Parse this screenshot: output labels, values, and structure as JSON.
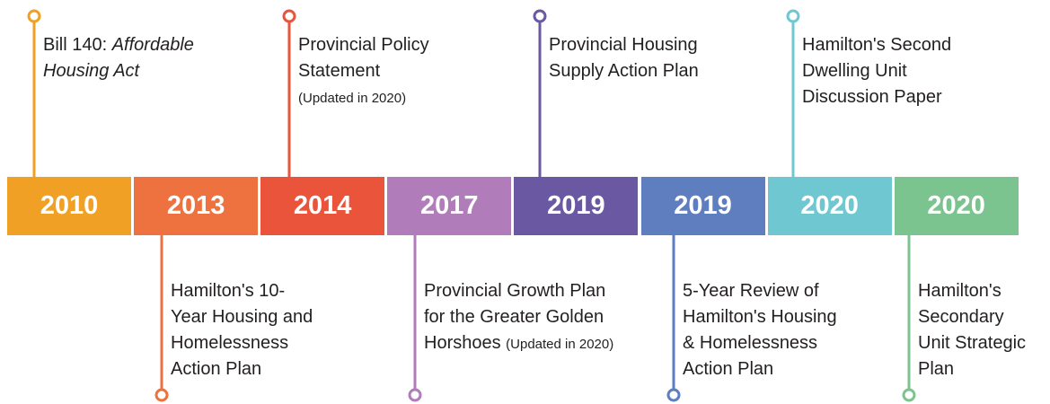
{
  "events": [
    {
      "year": "2010",
      "color": "#f0a125",
      "side": "top",
      "lines": [
        [
          "Bill 140: ",
          {
            "text": "Affordable",
            "style": "italic"
          }
        ],
        [
          {
            "text": "Housing Act",
            "style": "italic"
          }
        ]
      ]
    },
    {
      "year": "2013",
      "color": "#ee7240",
      "side": "bottom",
      "lines": [
        [
          "Hamilton's 10-"
        ],
        [
          "Year Housing and"
        ],
        [
          "Homelessness"
        ],
        [
          "Action Plan"
        ]
      ]
    },
    {
      "year": "2014",
      "color": "#e9543a",
      "side": "top",
      "lines": [
        [
          "Provincial Policy"
        ],
        [
          "Statement"
        ],
        [
          {
            "text": "(Updated in 2020)",
            "style": "small"
          }
        ]
      ]
    },
    {
      "year": "2017",
      "color": "#b07cba",
      "side": "bottom",
      "lines": [
        [
          "Provincial Growth Plan"
        ],
        [
          "for the Greater Golden"
        ],
        [
          "Horshoes ",
          {
            "text": "(Updated in 2020)",
            "style": "small"
          }
        ]
      ]
    },
    {
      "year": "2019",
      "color": "#6b58a3",
      "side": "top",
      "lines": [
        [
          "Provincial Housing"
        ],
        [
          "Supply Action Plan"
        ]
      ]
    },
    {
      "year": "2019",
      "color": "#5f7ebf",
      "side": "bottom",
      "lines": [
        [
          "5-Year Review of"
        ],
        [
          "Hamilton's Housing"
        ],
        [
          "& Homelessness"
        ],
        [
          "Action Plan"
        ]
      ]
    },
    {
      "year": "2020",
      "color": "#6fc8d1",
      "side": "top",
      "lines": [
        [
          "Hamilton's Second"
        ],
        [
          "Dwelling Unit"
        ],
        [
          "Discussion Paper"
        ]
      ]
    },
    {
      "year": "2020",
      "color": "#7cc48f",
      "side": "bottom",
      "lines": [
        [
          "Hamilton's"
        ],
        [
          "Secondary"
        ],
        [
          "Unit Strategic"
        ],
        [
          "Plan"
        ]
      ]
    }
  ]
}
